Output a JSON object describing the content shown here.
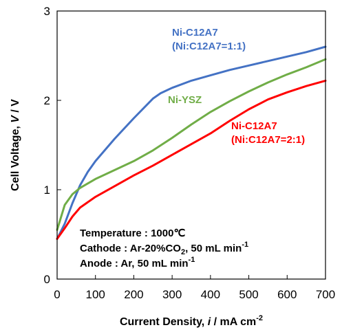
{
  "chart_data": {
    "type": "line",
    "xlabel_prefix": "Current Density, ",
    "xlabel_italic": "i",
    "xlabel_unit": " / mA cm",
    "xlabel_sup": "-2",
    "ylabel_prefix": "Cell Voltage, ",
    "ylabel_italic": "V",
    "ylabel_unit": " / V",
    "xlim": [
      0,
      700
    ],
    "ylim": [
      0,
      3
    ],
    "xticks": [
      0,
      100,
      200,
      300,
      400,
      500,
      600,
      700
    ],
    "yticks": [
      0,
      1,
      2,
      3
    ],
    "grid": false,
    "series": [
      {
        "name_line1": "Ni-C12A7",
        "name_line2": "(Ni:C12A7=1:1)",
        "color": "#4472C4",
        "x": [
          0,
          20,
          40,
          60,
          80,
          100,
          150,
          200,
          250,
          270,
          300,
          350,
          400,
          450,
          500,
          550,
          600,
          650,
          700
        ],
        "y": [
          0.45,
          0.62,
          0.85,
          1.05,
          1.2,
          1.32,
          1.57,
          1.8,
          2.02,
          2.08,
          2.14,
          2.22,
          2.28,
          2.34,
          2.39,
          2.44,
          2.49,
          2.54,
          2.6
        ]
      },
      {
        "name_line1": "Ni-YSZ",
        "name_line2": "",
        "color": "#70AD47",
        "x": [
          0,
          20,
          40,
          60,
          100,
          150,
          200,
          250,
          300,
          350,
          400,
          450,
          500,
          550,
          600,
          650,
          700
        ],
        "y": [
          0.55,
          0.83,
          0.95,
          1.02,
          1.12,
          1.22,
          1.32,
          1.44,
          1.58,
          1.73,
          1.87,
          1.99,
          2.1,
          2.2,
          2.29,
          2.37,
          2.46
        ]
      },
      {
        "name_line1": "Ni-C12A7",
        "name_line2": "(Ni:C12A7=2:1)",
        "color": "#FF0000",
        "x": [
          0,
          20,
          40,
          60,
          100,
          150,
          200,
          250,
          300,
          350,
          400,
          450,
          500,
          550,
          600,
          650,
          700
        ],
        "y": [
          0.45,
          0.57,
          0.7,
          0.8,
          0.92,
          1.04,
          1.16,
          1.27,
          1.39,
          1.51,
          1.63,
          1.77,
          1.9,
          2.01,
          2.09,
          2.16,
          2.22
        ]
      }
    ],
    "conditions": {
      "temperature": "Temperature : 1000℃",
      "cathode_prefix": "Cathode : Ar-20%CO",
      "cathode_sub": "2",
      "cathode_suffix": ", 50 mL min",
      "cathode_sup": "-1",
      "anode_prefix": "Anode : Ar, 50 mL min",
      "anode_sup": "-1"
    }
  }
}
